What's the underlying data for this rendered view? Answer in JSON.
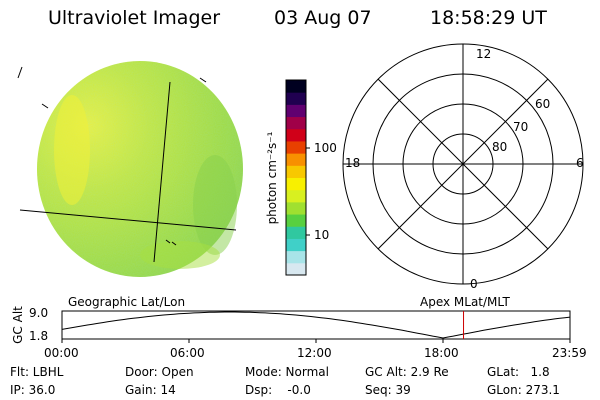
{
  "header": {
    "instrument": "Ultraviolet Imager",
    "date": "03 Aug 07",
    "time": "18:58:29 UT"
  },
  "colorbar": {
    "unit_label": "photon cm⁻²s⁻¹",
    "tick_100": "100",
    "tick_10": "10",
    "colors": [
      "#d8e8f0",
      "#a8e4e8",
      "#40d0c8",
      "#30c8a0",
      "#58d040",
      "#a0e030",
      "#d8f020",
      "#f8f000",
      "#f8c800",
      "#f89000",
      "#e84000",
      "#d00018",
      "#a00048",
      "#600070",
      "#200050",
      "#000020"
    ]
  },
  "polar": {
    "mlt_top": "12",
    "mlt_left": "18",
    "mlt_right": "6",
    "mlt_bottom": "0",
    "lat_60": "60",
    "lat_70": "70",
    "lat_80": "80"
  },
  "orbit": {
    "ylabel": "GC Alt",
    "ymax": "9.0",
    "ymin": "1.8",
    "title_left": "Geographic Lat/Lon",
    "title_right": "Apex MLat/MLT",
    "x_labels": [
      "00:00",
      "06:00",
      "12:00",
      "18:00",
      "23:59"
    ],
    "current_time_hours": 18.97,
    "marker_color": "#cc0000"
  },
  "info": {
    "row1": {
      "flt": "Flt: LBHL",
      "door": "Door: Open",
      "mode": "Mode: Normal",
      "gcalt": "GC Alt: 2.9 Re",
      "glat": "GLat:   1.8"
    },
    "row2": {
      "ip": "IP: 36.0",
      "gain": "Gain: 14",
      "dsp": "Dsp:    -0.0",
      "seq": "Seq: 39",
      "glon": "GLon: 273.1"
    }
  }
}
